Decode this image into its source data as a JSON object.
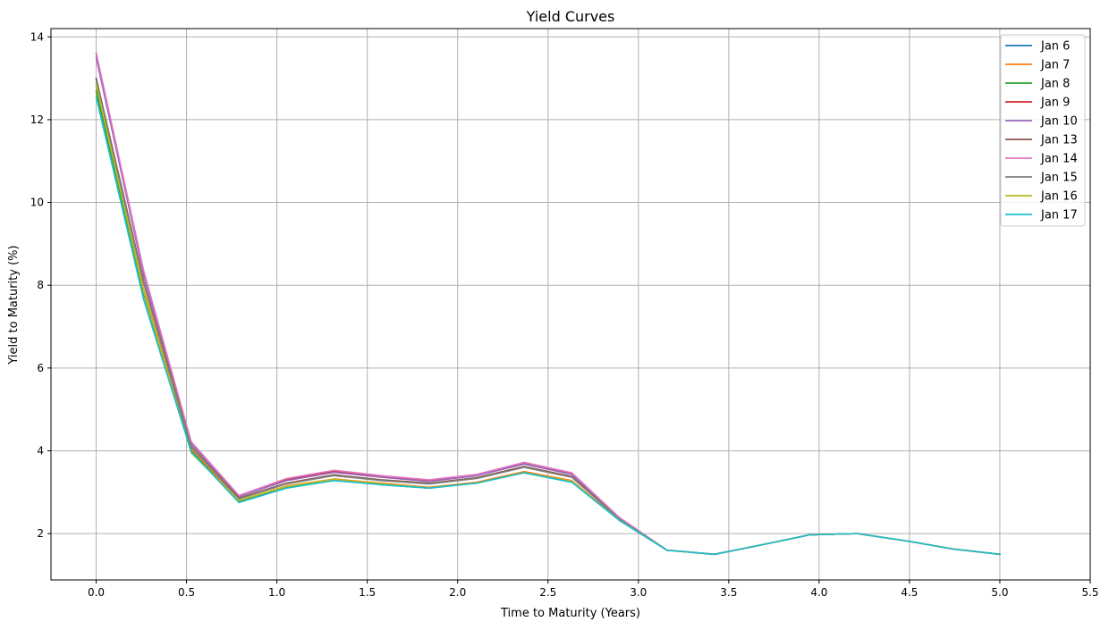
{
  "chart_data": {
    "type": "line",
    "title": "Yield Curves",
    "xlabel": "Time to Maturity (Years)",
    "ylabel": "Yield to Maturity (%)",
    "xlim": [
      -0.25,
      5.5
    ],
    "ylim": [
      0.88,
      14.2
    ],
    "xticks": [
      0.0,
      0.5,
      1.0,
      1.5,
      2.0,
      2.5,
      3.0,
      3.5,
      4.0,
      4.5,
      5.0,
      5.5
    ],
    "xtick_labels": [
      "0.0",
      "0.5",
      "1.0",
      "1.5",
      "2.0",
      "2.5",
      "3.0",
      "3.5",
      "4.0",
      "4.5",
      "5.0",
      "5.5"
    ],
    "yticks": [
      2,
      4,
      6,
      8,
      10,
      12,
      14
    ],
    "ytick_labels": [
      "2",
      "4",
      "6",
      "8",
      "10",
      "12",
      "14"
    ],
    "grid": true,
    "legend_position": "top-right",
    "x": [
      0.0,
      0.263,
      0.526,
      0.79,
      1.053,
      1.316,
      1.579,
      1.842,
      2.105,
      2.368,
      2.632,
      2.895,
      3.158,
      3.421,
      3.684,
      3.947,
      4.211,
      4.474,
      4.737,
      5.0
    ],
    "series": [
      {
        "name": "Jan 6",
        "color": "#1f77b4",
        "values": [
          13.0,
          7.8,
          4.0,
          2.78,
          3.12,
          3.3,
          3.2,
          3.1,
          3.22,
          3.47,
          3.25,
          2.32,
          1.6,
          1.5,
          1.73,
          1.97,
          2.0,
          1.83,
          1.63,
          1.5
        ]
      },
      {
        "name": "Jan 7",
        "color": "#ff7f0e",
        "values": [
          12.8,
          7.9,
          4.05,
          2.8,
          3.15,
          3.32,
          3.22,
          3.12,
          3.24,
          3.5,
          3.28,
          2.33,
          1.6,
          1.5,
          1.73,
          1.97,
          2.0,
          1.83,
          1.63,
          1.5
        ]
      },
      {
        "name": "Jan 8",
        "color": "#2ca02c",
        "values": [
          12.7,
          7.8,
          4.0,
          2.76,
          3.1,
          3.3,
          3.18,
          3.1,
          3.22,
          3.47,
          3.25,
          2.32,
          1.6,
          1.5,
          1.73,
          1.97,
          2.0,
          1.83,
          1.63,
          1.5
        ]
      },
      {
        "name": "Jan 9",
        "color": "#d62728",
        "values": [
          13.6,
          8.3,
          4.2,
          2.9,
          3.3,
          3.5,
          3.38,
          3.28,
          3.42,
          3.7,
          3.45,
          2.38,
          1.6,
          1.5,
          1.73,
          1.97,
          2.0,
          1.83,
          1.63,
          1.5
        ]
      },
      {
        "name": "Jan 10",
        "color": "#9467bd",
        "values": [
          13.5,
          8.25,
          4.18,
          2.9,
          3.28,
          3.48,
          3.36,
          3.26,
          3.4,
          3.68,
          3.43,
          2.38,
          1.6,
          1.5,
          1.73,
          1.97,
          2.0,
          1.83,
          1.63,
          1.5
        ]
      },
      {
        "name": "Jan 13",
        "color": "#8c564b",
        "values": [
          13.0,
          8.1,
          4.12,
          2.86,
          3.22,
          3.42,
          3.3,
          3.22,
          3.35,
          3.62,
          3.38,
          2.36,
          1.6,
          1.5,
          1.73,
          1.97,
          2.0,
          1.83,
          1.63,
          1.5
        ]
      },
      {
        "name": "Jan 14",
        "color": "#e377c2",
        "values": [
          13.62,
          8.35,
          4.22,
          2.92,
          3.33,
          3.53,
          3.4,
          3.3,
          3.43,
          3.72,
          3.47,
          2.39,
          1.6,
          1.5,
          1.73,
          1.97,
          2.0,
          1.83,
          1.63,
          1.5
        ]
      },
      {
        "name": "Jan 15",
        "color": "#7f7f7f",
        "values": [
          12.95,
          8.05,
          4.1,
          2.84,
          3.2,
          3.4,
          3.28,
          3.2,
          3.33,
          3.6,
          3.36,
          2.35,
          1.6,
          1.5,
          1.73,
          1.97,
          2.0,
          1.83,
          1.63,
          1.5
        ]
      },
      {
        "name": "Jan 16",
        "color": "#bcbd22",
        "values": [
          12.85,
          7.85,
          3.95,
          2.8,
          3.14,
          3.31,
          3.2,
          3.1,
          3.22,
          3.47,
          3.26,
          2.32,
          1.6,
          1.5,
          1.73,
          1.97,
          2.0,
          1.83,
          1.63,
          1.5
        ]
      },
      {
        "name": "Jan 17",
        "color": "#17becf",
        "values": [
          12.55,
          7.65,
          3.98,
          2.75,
          3.1,
          3.28,
          3.18,
          3.1,
          3.22,
          3.47,
          3.24,
          2.32,
          1.6,
          1.5,
          1.73,
          1.97,
          2.0,
          1.83,
          1.63,
          1.5
        ]
      }
    ]
  }
}
